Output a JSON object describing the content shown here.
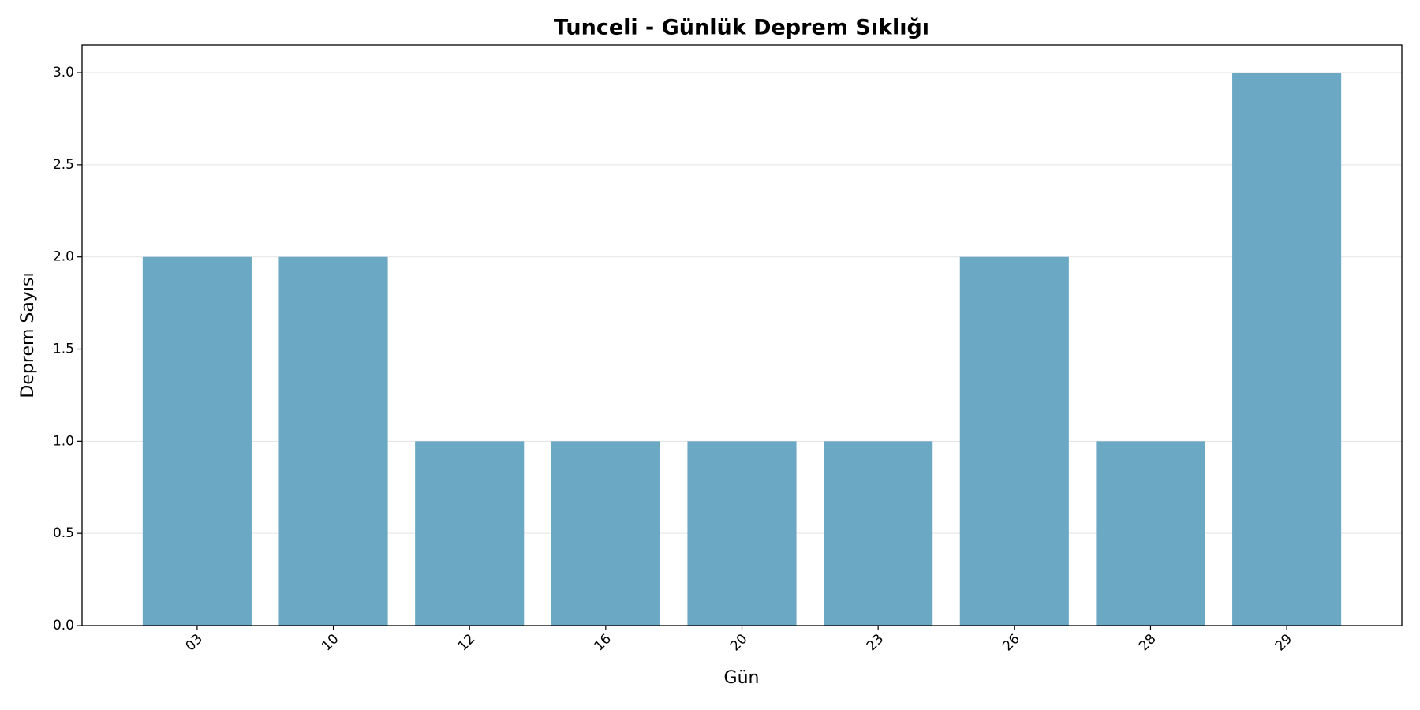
{
  "chart_data": {
    "type": "bar",
    "title": "Tunceli - Günlük Deprem Sıklığı",
    "x_label": "Gün",
    "y_label": "Deprem Sayısı",
    "categories": [
      "03",
      "10",
      "12",
      "16",
      "20",
      "23",
      "26",
      "28",
      "29"
    ],
    "values": [
      2,
      2,
      1,
      1,
      1,
      1,
      2,
      1,
      3
    ],
    "color": "#6ba8c3",
    "ylim": [
      0,
      3.15
    ],
    "yticks": [
      {
        "value": 0,
        "label": "0.0"
      },
      0.5,
      {
        "value": 1,
        "label": "1.0"
      },
      1.5,
      {
        "value": 2,
        "label": "2.0"
      },
      2.5,
      {
        "value": 3,
        "label": "3.0"
      }
    ],
    "grid": true
  }
}
